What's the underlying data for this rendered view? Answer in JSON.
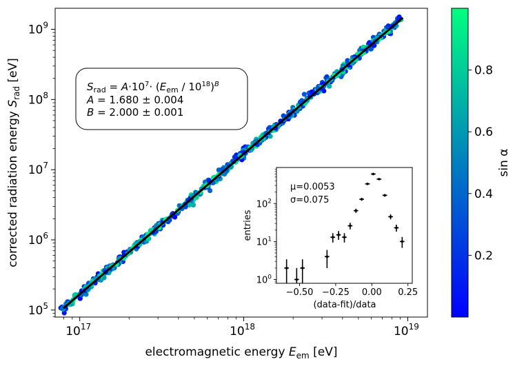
{
  "chart_data": [
    {
      "id": "main",
      "type": "scatter",
      "title": "",
      "xlabel": "electromagnetic energy",
      "xlabel_symbol": "E",
      "xlabel_sub": "em",
      "xlabel_unit": "[eV]",
      "ylabel": "corrected radiation energy",
      "ylabel_symbol": "S",
      "ylabel_sub": "rad",
      "ylabel_unit": "[eV]",
      "xscale": "log",
      "yscale": "log",
      "xlim_log10": [
        16.85,
        19.12
      ],
      "ylim_log10": [
        4.9,
        9.3
      ],
      "xticks": [
        {
          "label_base": "10",
          "label_exp": "17",
          "log10": 17
        },
        {
          "label_base": "10",
          "label_exp": "18",
          "log10": 18
        },
        {
          "label_base": "10",
          "label_exp": "19",
          "log10": 19
        }
      ],
      "yticks": [
        {
          "label_base": "10",
          "label_exp": "5",
          "log10": 5
        },
        {
          "label_base": "10",
          "label_exp": "6",
          "log10": 6
        },
        {
          "label_base": "10",
          "label_exp": "7",
          "log10": 7
        },
        {
          "label_base": "10",
          "label_exp": "8",
          "log10": 8
        },
        {
          "label_base": "10",
          "label_exp": "9",
          "log10": 9
        }
      ],
      "fit": {
        "A": 1.68,
        "A_err": 0.004,
        "B": 2.0,
        "B_err": 0.001,
        "x_range_log10": [
          16.9,
          18.97
        ],
        "color": "#000000",
        "formula_line1": "S_rad = A·10^7· (E_em / 10^18)^B",
        "formula_line2": "A = 1.680 ± 0.004",
        "formula_line3": "B = 2.000 ± 0.001"
      },
      "scatter": {
        "color_variable": "sin α",
        "approx_x_range_log10": [
          16.88,
          18.97
        ],
        "relative_scatter_sigma": 0.075,
        "note": "several hundred points along the fit line, colored by sin alpha"
      }
    },
    {
      "id": "inset",
      "type": "histogram",
      "xlabel": "(data-fit)/data",
      "ylabel": "entries",
      "yscale": "log",
      "xlim": [
        -0.66,
        0.28
      ],
      "ylim_log10": [
        -0.1,
        2.95
      ],
      "xticks": [
        {
          "label": "−0.50",
          "value": -0.5
        },
        {
          "label": "−0.25",
          "value": -0.25
        },
        {
          "label": "0.00",
          "value": 0.0
        },
        {
          "label": "0.25",
          "value": 0.25
        }
      ],
      "yticks": [
        {
          "label_base": "10",
          "label_exp": "0",
          "log10": 0
        },
        {
          "label_base": "10",
          "label_exp": "1",
          "log10": 1
        },
        {
          "label_base": "10",
          "label_exp": "2",
          "log10": 2
        }
      ],
      "bin_halfwidth": 0.016,
      "points": [
        {
          "x": -0.59,
          "y": 2,
          "err": 1.4
        },
        {
          "x": -0.52,
          "y": 1,
          "err": 1.0
        },
        {
          "x": -0.48,
          "y": 2,
          "err": 1.4
        },
        {
          "x": -0.31,
          "y": 4,
          "err": 2.0
        },
        {
          "x": -0.27,
          "y": 13,
          "err": 3.6
        },
        {
          "x": -0.23,
          "y": 15,
          "err": 3.9
        },
        {
          "x": -0.19,
          "y": 13,
          "err": 3.6
        },
        {
          "x": -0.15,
          "y": 26,
          "err": 5.1
        },
        {
          "x": -0.11,
          "y": 65,
          "err": 8.1
        },
        {
          "x": -0.07,
          "y": 130,
          "err": 11.4
        },
        {
          "x": -0.03,
          "y": 330,
          "err": 18.2
        },
        {
          "x": 0.01,
          "y": 600,
          "err": 24.5
        },
        {
          "x": 0.05,
          "y": 440,
          "err": 21.0
        },
        {
          "x": 0.09,
          "y": 165,
          "err": 12.8
        },
        {
          "x": 0.13,
          "y": 45,
          "err": 6.7
        },
        {
          "x": 0.17,
          "y": 23,
          "err": 4.8
        },
        {
          "x": 0.21,
          "y": 10,
          "err": 3.2
        }
      ],
      "stats_mu": "μ=0.0053",
      "stats_sigma": "σ=0.075"
    }
  ],
  "colorbar": {
    "label": "sin α",
    "range": [
      0.0,
      1.0
    ],
    "colormap": "winter",
    "color_low": "#0000ff",
    "color_high": "#00ff80",
    "ticks": [
      {
        "label": "0.2",
        "value": 0.2
      },
      {
        "label": "0.4",
        "value": 0.4
      },
      {
        "label": "0.6",
        "value": 0.6
      },
      {
        "label": "0.8",
        "value": 0.8
      }
    ]
  },
  "formula_box": {
    "line1_S": "S",
    "line1_sub": "rad",
    "line1_mid": " = ",
    "line1_A": "A",
    "line1_times": "·10",
    "line1_exp7": "7",
    "line1_paren": "· (",
    "line1_E": "E",
    "line1_Esub": "em",
    "line1_div": " / 10",
    "line1_exp18": "18",
    "line1_close": ")",
    "line1_B": "B",
    "line2_A": "A",
    "line2_rest": " = 1.680 ± 0.004",
    "line3_B": "B",
    "line3_rest": " = 2.000 ± 0.001"
  }
}
